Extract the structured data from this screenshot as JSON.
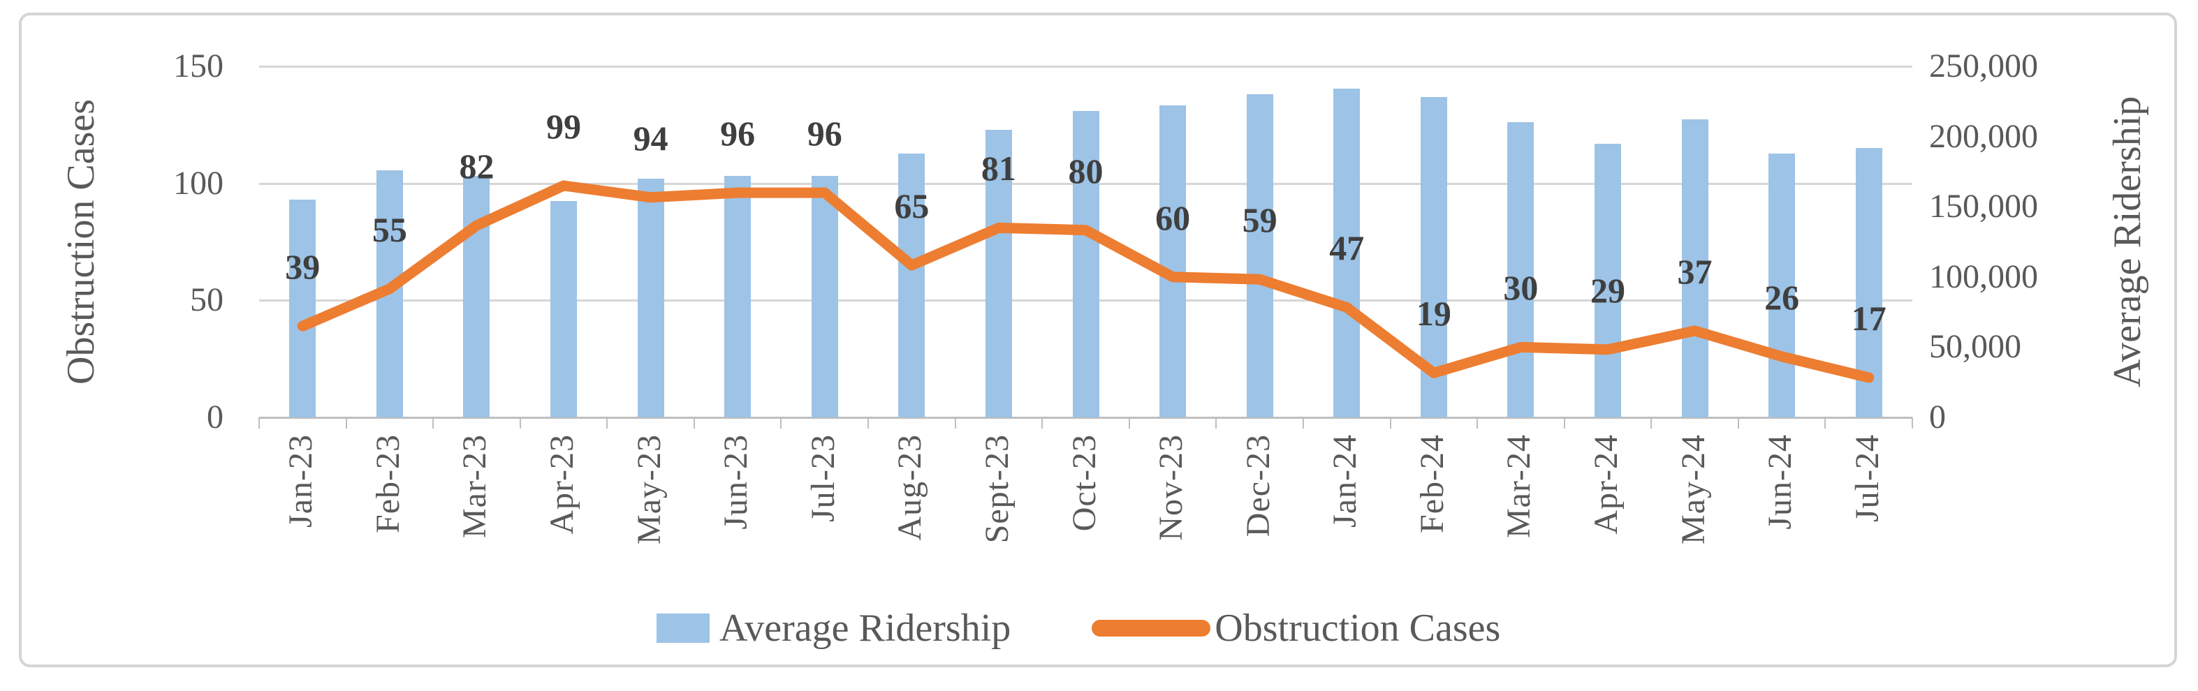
{
  "figure": {
    "kind": "embedded-excel-combo-chart"
  },
  "colors": {
    "bar_fill": "#9DC3E6",
    "line_stroke": "#ED7D31",
    "gridline": "#D6D6D6",
    "axis_line": "#BFBFBF",
    "tick_text": "#595959",
    "data_label_text": "#3F3F3F",
    "frame_border": "#D5D5D5"
  },
  "chart_data": {
    "type": "bar",
    "subtype": "combo-bar-line-dual-axis",
    "grid": "horizontal-on",
    "categories": [
      "Jan-23",
      "Feb-23",
      "Mar-23",
      "Apr-23",
      "May-23",
      "Jun-23",
      "Jul-23",
      "Aug-23",
      "Sept-23",
      "Oct-23",
      "Nov-23",
      "Dec-23",
      "Jan-24",
      "Feb-24",
      "Mar-24",
      "Apr-24",
      "May-24",
      "Jun-24",
      "Jul-24"
    ],
    "series": [
      {
        "name": "Average Ridership",
        "chart_type": "column",
        "axis": "right",
        "color": "#9DC3E6",
        "values": [
          155000,
          176000,
          172000,
          154000,
          170000,
          172000,
          172000,
          188000,
          205000,
          218000,
          222000,
          230000,
          234000,
          228000,
          210000,
          195000,
          212000,
          188000,
          192000
        ]
      },
      {
        "name": "Obstruction Cases",
        "chart_type": "line",
        "axis": "left",
        "color": "#ED7D31",
        "data_labels_shown": true,
        "values": [
          39,
          55,
          82,
          99,
          94,
          96,
          96,
          65,
          81,
          80,
          60,
          59,
          47,
          19,
          30,
          29,
          37,
          26,
          17
        ]
      }
    ],
    "left_axis": {
      "title": "Obstruction Cases",
      "min": 0,
      "max": 150,
      "major_unit": 50,
      "tick_labels": [
        "150",
        "100",
        "50",
        "0"
      ]
    },
    "right_axis": {
      "title": "Average Ridership",
      "min": 0,
      "max": 250000,
      "major_unit": 50000,
      "tick_labels": [
        "250,000",
        "200,000",
        "150,000",
        "100,000",
        "50,000",
        "0"
      ]
    },
    "legend": {
      "position": "bottom",
      "entries": [
        "Average Ridership",
        "Obstruction Cases"
      ]
    }
  }
}
